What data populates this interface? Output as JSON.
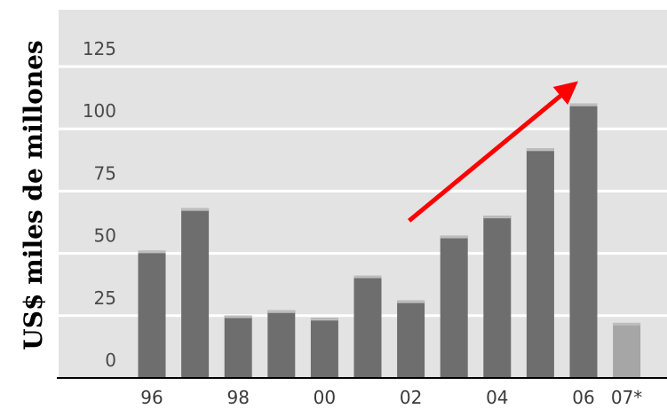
{
  "chart_data": {
    "type": "bar",
    "title": "",
    "xlabel": "",
    "ylabel": "US$ miles de millones",
    "ylim": [
      0,
      125
    ],
    "yticks": [
      0,
      25,
      50,
      75,
      100,
      125
    ],
    "grid": true,
    "categories": [
      "96",
      "97",
      "98",
      "99",
      "00",
      "01",
      "02",
      "03",
      "04",
      "05",
      "06",
      "07*"
    ],
    "xtick_labels": [
      "96",
      "",
      "98",
      "",
      "00",
      "",
      "02",
      "",
      "04",
      "",
      "06",
      "07*"
    ],
    "values": [
      44,
      61,
      18,
      20,
      17,
      34,
      24,
      50,
      58,
      85,
      103,
      15
    ],
    "bar_colors": [
      "#6e6e6e",
      "#6e6e6e",
      "#6e6e6e",
      "#6e6e6e",
      "#6e6e6e",
      "#6e6e6e",
      "#6e6e6e",
      "#6e6e6e",
      "#6e6e6e",
      "#6e6e6e",
      "#6e6e6e",
      "#a6a6a6"
    ],
    "annotation": {
      "type": "arrow",
      "color": "#ff0000",
      "from": {
        "x": "02",
        "y": 56
      },
      "to": {
        "x": "06",
        "y": 112
      }
    },
    "colors": {
      "background": "#e3e3e3",
      "grid": "#ffffff",
      "bar": "#6e6e6e",
      "bar_estimate": "#a6a6a6",
      "axis": "#000000"
    }
  }
}
